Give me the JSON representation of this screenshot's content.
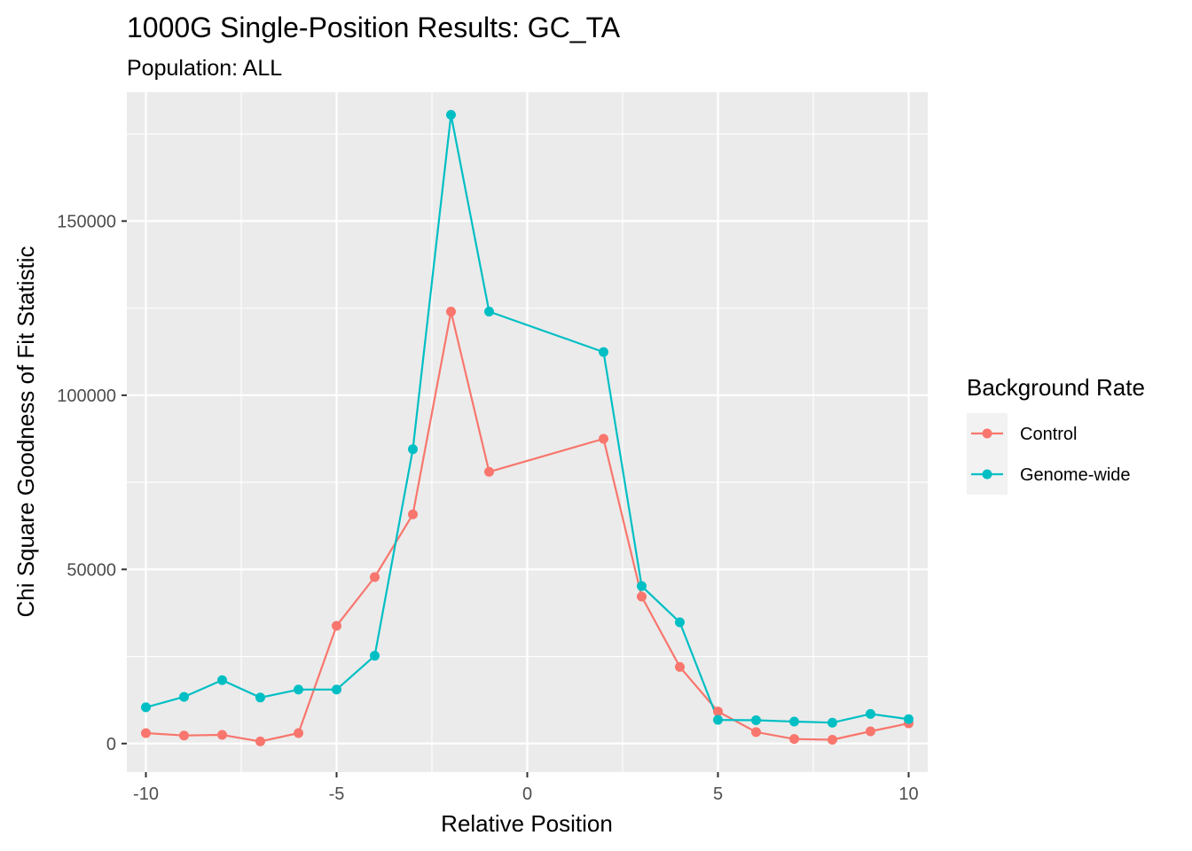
{
  "chart_data": {
    "type": "line",
    "title": "1000G Single-Position Results: GC_TA",
    "subtitle": "Population: ALL",
    "xlabel": "Relative Position",
    "ylabel": "Chi Square Goodness of Fit Statistic",
    "xlim": [
      -10.5,
      10.5
    ],
    "ylim": [
      -8200,
      187000
    ],
    "x_ticks": [
      -10,
      -5,
      0,
      5,
      10
    ],
    "x_tick_labels": [
      "-10",
      "-5",
      "0",
      "5",
      "10"
    ],
    "y_ticks": [
      0,
      50000,
      100000,
      150000
    ],
    "y_tick_labels": [
      "0",
      "50000",
      "100000",
      "150000"
    ],
    "x_minor": [
      -7.5,
      -2.5,
      2.5,
      7.5
    ],
    "y_minor": [
      25000,
      75000,
      125000,
      175000
    ],
    "grid": true,
    "legend_title": "Background Rate",
    "legend_position": "right",
    "x": [
      -10,
      -9,
      -8,
      -7,
      -6,
      -5,
      -4,
      -3,
      -2,
      -1,
      2,
      3,
      4,
      5,
      6,
      7,
      8,
      9,
      10
    ],
    "series": [
      {
        "name": "Control",
        "color": "#F8766D",
        "values": [
          3000,
          2300,
          2500,
          600,
          3000,
          33800,
          47800,
          65800,
          124000,
          78000,
          87500,
          42200,
          22000,
          9200,
          3300,
          1300,
          1100,
          3500,
          5800
        ]
      },
      {
        "name": "Genome-wide",
        "color": "#00BFC4",
        "values": [
          10400,
          13400,
          18200,
          13200,
          15500,
          15500,
          25200,
          84500,
          180500,
          124000,
          112400,
          45200,
          34800,
          6800,
          6700,
          6300,
          6000,
          8500,
          7000
        ]
      }
    ]
  }
}
